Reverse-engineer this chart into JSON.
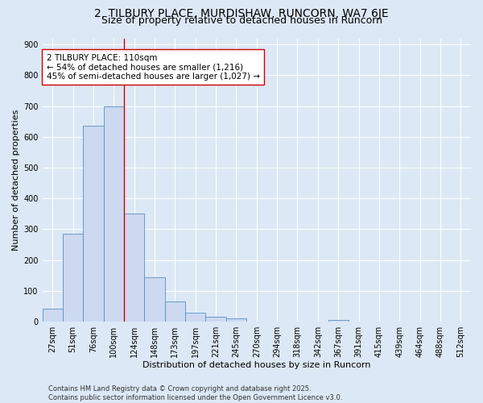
{
  "title_line1": "2, TILBURY PLACE, MURDISHAW, RUNCORN, WA7 6JE",
  "title_line2": "Size of property relative to detached houses in Runcorn",
  "xlabel": "Distribution of detached houses by size in Runcorn",
  "ylabel": "Number of detached properties",
  "bar_labels": [
    "27sqm",
    "51sqm",
    "76sqm",
    "100sqm",
    "124sqm",
    "148sqm",
    "173sqm",
    "197sqm",
    "221sqm",
    "245sqm",
    "270sqm",
    "294sqm",
    "318sqm",
    "342sqm",
    "367sqm",
    "391sqm",
    "415sqm",
    "439sqm",
    "464sqm",
    "488sqm",
    "512sqm"
  ],
  "bar_values": [
    42,
    285,
    635,
    700,
    352,
    143,
    65,
    28,
    16,
    11,
    0,
    0,
    0,
    0,
    5,
    0,
    0,
    0,
    0,
    0,
    0
  ],
  "bar_color": "#ccd9f0",
  "bar_edge_color": "#5b8ec4",
  "vline_x": 3.5,
  "vline_color": "#cc0000",
  "annotation_text": "2 TILBURY PLACE: 110sqm\n← 54% of detached houses are smaller (1,216)\n45% of semi-detached houses are larger (1,027) →",
  "annotation_box_color": "#ffffff",
  "annotation_box_edge_color": "#cc0000",
  "ylim": [
    0,
    920
  ],
  "yticks": [
    0,
    100,
    200,
    300,
    400,
    500,
    600,
    700,
    800,
    900
  ],
  "bg_color": "#dce8f5",
  "footer_line1": "Contains HM Land Registry data © Crown copyright and database right 2025.",
  "footer_line2": "Contains public sector information licensed under the Open Government Licence v3.0.",
  "title_fontsize": 10,
  "subtitle_fontsize": 9,
  "axis_fontsize": 8,
  "tick_fontsize": 7,
  "annotation_fontsize": 7.5,
  "footer_fontsize": 6
}
